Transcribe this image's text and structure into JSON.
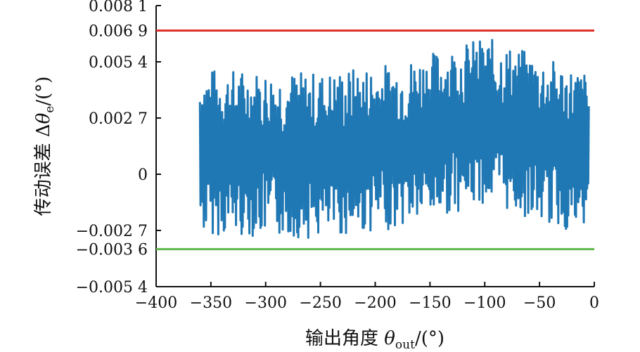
{
  "chart_data": {
    "type": "line",
    "xlabel": "输出角度 θout/(°)",
    "xlabel_parts": {
      "prefix": "输出角度 ",
      "symbol": "θ",
      "subscript": "out",
      "suffix": "/(°)"
    },
    "ylabel": "传动误差 Δθe/(°)",
    "ylabel_parts": {
      "prefix": "传动误差 Δ",
      "symbol": "θ",
      "subscript": "e",
      "suffix": "/(°)"
    },
    "xlim": [
      -400,
      0
    ],
    "ylim": [
      -0.0054,
      0.0081
    ],
    "x_ticks": [
      -400,
      -350,
      -300,
      -250,
      -200,
      -150,
      -100,
      -50,
      0
    ],
    "x_tick_labels": [
      "−400",
      "−350",
      "−300",
      "−250",
      "−200",
      "−150",
      "−100",
      "−50",
      "0"
    ],
    "y_ticks": [
      -0.0054,
      -0.0036,
      -0.0027,
      0,
      0.0027,
      0.0054,
      0.0069,
      0.0081
    ],
    "y_tick_labels": [
      "−0.005 4",
      "−0.003 6",
      "−0.002 7",
      "0",
      "0.002 7",
      "0.005 4",
      "0.006 9",
      "0.008 1"
    ],
    "grid": false,
    "series": [
      {
        "color": "#1f77b4",
        "x_range": [
          -360,
          -5
        ],
        "approx_center_trend": {
          "x": [
            -360,
            -250,
            -180,
            -100,
            -50,
            -5
          ],
          "y": [
            0.0011,
            0.0009,
            0.0014,
            0.0026,
            0.0017,
            0.0009
          ]
        },
        "approx_min": -0.0035,
        "approx_max": 0.0068
      },
      {
        "color": "#e0312d",
        "constant_y": 0.0069
      },
      {
        "color": "#5cb84a",
        "constant_y": -0.0036
      }
    ]
  }
}
